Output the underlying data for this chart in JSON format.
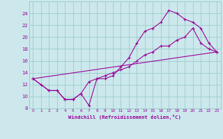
{
  "xlabel": "Windchill (Refroidissement éolien,°C)",
  "bg_color": "#cce8ec",
  "grid_color": "#99cccc",
  "line_color": "#990099",
  "xlim": [
    -0.5,
    23.5
  ],
  "ylim": [
    8,
    26
  ],
  "xticks": [
    0,
    1,
    2,
    3,
    4,
    5,
    6,
    7,
    8,
    9,
    10,
    11,
    12,
    13,
    14,
    15,
    16,
    17,
    18,
    19,
    20,
    21,
    22,
    23
  ],
  "yticks": [
    8,
    10,
    12,
    14,
    16,
    18,
    20,
    22,
    24
  ],
  "line1_x": [
    0,
    1,
    2,
    3,
    4,
    5,
    6,
    7,
    8,
    9,
    10,
    11,
    12,
    13,
    14,
    15,
    16,
    17,
    18,
    19,
    20,
    21,
    22,
    23
  ],
  "line1_y": [
    13,
    12,
    11,
    11,
    9.5,
    9.5,
    10.5,
    8.5,
    13,
    13,
    13.5,
    15,
    16.5,
    19,
    21,
    21.5,
    22.5,
    24.5,
    24,
    23,
    22.5,
    21.5,
    19,
    17.5
  ],
  "line2_x": [
    0,
    2,
    3,
    4,
    5,
    6,
    7,
    8,
    9,
    10,
    11,
    12,
    13,
    14,
    15,
    16,
    17,
    18,
    19,
    20,
    21,
    22,
    23
  ],
  "line2_y": [
    13,
    11,
    11,
    9.5,
    9.5,
    10.5,
    12.5,
    13,
    13.5,
    14,
    14.5,
    15,
    16,
    17,
    17.5,
    18.5,
    18.5,
    19.5,
    20,
    21.5,
    19,
    18,
    17.5
  ],
  "line3_x": [
    0,
    23
  ],
  "line3_y": [
    13,
    17.5
  ]
}
